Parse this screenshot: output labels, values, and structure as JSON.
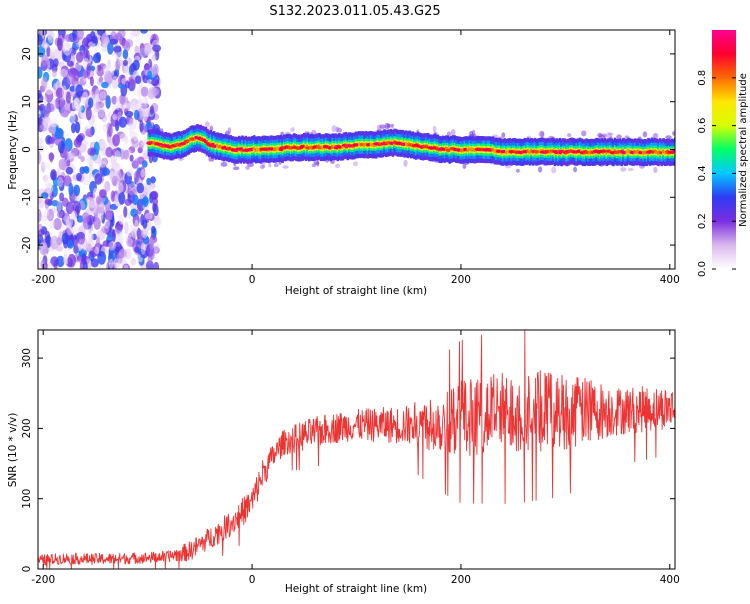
{
  "title": "S132.2023.011.05.43.G25",
  "chart_data": [
    {
      "type": "heatmap",
      "xlabel": "Height of straight line (km)",
      "ylabel": "Frequency (Hz)",
      "xlim": [
        -205,
        405
      ],
      "ylim": [
        -25,
        25
      ],
      "xticks": [
        -200,
        0,
        200,
        400
      ],
      "yticks": [
        -20,
        -10,
        0,
        10,
        20
      ],
      "colorbar": {
        "label": "Normalized spectral amplitude",
        "range": [
          0.0,
          1.0
        ],
        "ticks": [
          0.0,
          0.2,
          0.4,
          0.6,
          0.8
        ],
        "colors": [
          "#ffffff",
          "#d9b8ee",
          "#7b2ee0",
          "#2f3bf2",
          "#00c8ff",
          "#00ff66",
          "#d6ff00",
          "#ffe600",
          "#ff6a00",
          "#ff0030",
          "#ff0090"
        ]
      },
      "noise_region_x": [
        -205,
        -100
      ],
      "signal_trace": {
        "x": [
          -100,
          -90,
          -80,
          -70,
          -60,
          -50,
          -40,
          -30,
          -20,
          0,
          20,
          40,
          60,
          80,
          100,
          120,
          130,
          150,
          170,
          180,
          200,
          220,
          240,
          260,
          300,
          340,
          380,
          405
        ],
        "frequency_hz": [
          1.5,
          1.0,
          0.5,
          1.0,
          2.0,
          2.5,
          1.0,
          0.5,
          0.0,
          0.0,
          0.0,
          0.5,
          0.5,
          0.5,
          1.0,
          1.0,
          1.5,
          1.0,
          0.5,
          0.0,
          0.0,
          0.0,
          -0.5,
          -0.5,
          -0.5,
          -0.5,
          -0.5,
          -0.5
        ]
      }
    },
    {
      "type": "line",
      "xlabel": "Height of straight line (km)",
      "ylabel": "SNR (10 * v/v)",
      "xlim": [
        -205,
        405
      ],
      "ylim": [
        0,
        340
      ],
      "xticks": [
        -200,
        0,
        200,
        400
      ],
      "yticks": [
        0,
        100,
        200,
        300
      ],
      "series": [
        {
          "color": "#ee3333",
          "x": [
            -205,
            -180,
            -150,
            -120,
            -100,
            -80,
            -60,
            -40,
            -20,
            0,
            10,
            20,
            30,
            50,
            75,
            100,
            150,
            180,
            200,
            250,
            300,
            350,
            405
          ],
          "y": [
            12,
            15,
            14,
            15,
            16,
            18,
            25,
            45,
            65,
            95,
            135,
            160,
            180,
            190,
            200,
            205,
            205,
            210,
            215,
            225,
            225,
            225,
            230
          ],
          "noise_spread": [
            8,
            8,
            8,
            8,
            8,
            8,
            14,
            16,
            18,
            22,
            22,
            18,
            18,
            22,
            22,
            22,
            28,
            45,
            55,
            60,
            55,
            35,
            30
          ]
        }
      ]
    }
  ]
}
